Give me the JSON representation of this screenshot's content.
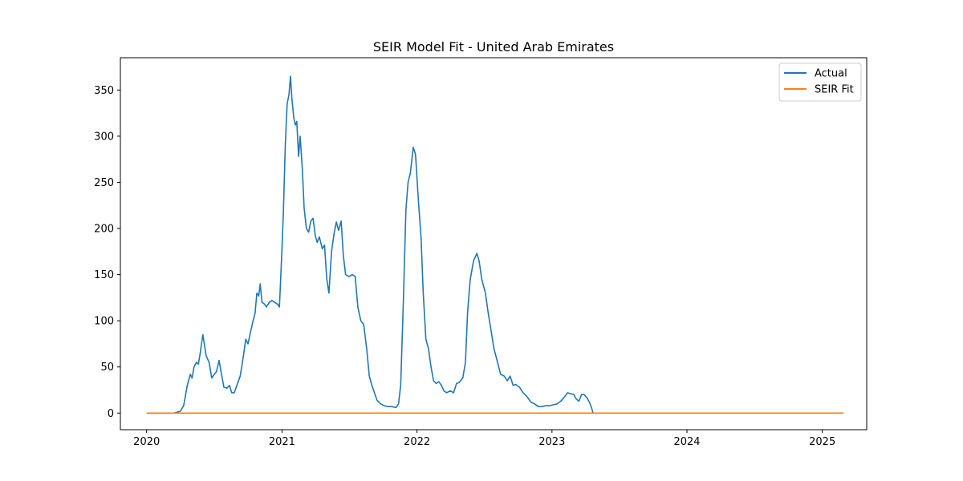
{
  "chart_data": {
    "type": "line",
    "title": "SEIR Model Fit - United Arab Emirates",
    "xlabel": "",
    "ylabel": "",
    "xlim": [
      "2019-10-22",
      "2025-05-01"
    ],
    "ylim": [
      -18,
      385
    ],
    "xticks": [
      "2020",
      "2021",
      "2022",
      "2023",
      "2024",
      "2025"
    ],
    "yticks": [
      0,
      50,
      100,
      150,
      200,
      250,
      300,
      350
    ],
    "grid": false,
    "legend_position": "top-right",
    "series": [
      {
        "name": "Actual",
        "color": "#1f77b4",
        "points": [
          [
            "2020-01-01",
            0
          ],
          [
            "2020-03-15",
            0
          ],
          [
            "2020-04-01",
            2
          ],
          [
            "2020-04-10",
            8
          ],
          [
            "2020-04-20",
            30
          ],
          [
            "2020-04-28",
            42
          ],
          [
            "2020-05-03",
            38
          ],
          [
            "2020-05-08",
            50
          ],
          [
            "2020-05-15",
            55
          ],
          [
            "2020-05-20",
            53
          ],
          [
            "2020-05-25",
            65
          ],
          [
            "2020-06-01",
            85
          ],
          [
            "2020-06-05",
            75
          ],
          [
            "2020-06-10",
            62
          ],
          [
            "2020-06-18",
            55
          ],
          [
            "2020-06-25",
            38
          ],
          [
            "2020-07-02",
            42
          ],
          [
            "2020-07-08",
            45
          ],
          [
            "2020-07-15",
            57
          ],
          [
            "2020-07-20",
            45
          ],
          [
            "2020-07-28",
            28
          ],
          [
            "2020-08-05",
            27
          ],
          [
            "2020-08-12",
            30
          ],
          [
            "2020-08-18",
            22
          ],
          [
            "2020-08-25",
            22
          ],
          [
            "2020-09-01",
            30
          ],
          [
            "2020-09-10",
            40
          ],
          [
            "2020-09-18",
            60
          ],
          [
            "2020-09-25",
            80
          ],
          [
            "2020-10-01",
            75
          ],
          [
            "2020-10-08",
            88
          ],
          [
            "2020-10-15",
            100
          ],
          [
            "2020-10-20",
            108
          ],
          [
            "2020-10-25",
            130
          ],
          [
            "2020-10-30",
            127
          ],
          [
            "2020-11-03",
            140
          ],
          [
            "2020-11-08",
            120
          ],
          [
            "2020-11-15",
            118
          ],
          [
            "2020-11-20",
            115
          ],
          [
            "2020-11-28",
            120
          ],
          [
            "2020-12-05",
            122
          ],
          [
            "2020-12-12",
            120
          ],
          [
            "2020-12-20",
            118
          ],
          [
            "2020-12-25",
            115
          ],
          [
            "2021-01-01",
            178
          ],
          [
            "2021-01-05",
            220
          ],
          [
            "2021-01-10",
            290
          ],
          [
            "2021-01-15",
            335
          ],
          [
            "2021-01-20",
            345
          ],
          [
            "2021-01-24",
            365
          ],
          [
            "2021-01-28",
            340
          ],
          [
            "2021-02-02",
            320
          ],
          [
            "2021-02-06",
            312
          ],
          [
            "2021-02-10",
            316
          ],
          [
            "2021-02-15",
            278
          ],
          [
            "2021-02-19",
            300
          ],
          [
            "2021-02-25",
            265
          ],
          [
            "2021-03-02",
            222
          ],
          [
            "2021-03-08",
            200
          ],
          [
            "2021-03-14",
            196
          ],
          [
            "2021-03-20",
            208
          ],
          [
            "2021-03-26",
            211
          ],
          [
            "2021-04-01",
            192
          ],
          [
            "2021-04-06",
            185
          ],
          [
            "2021-04-12",
            191
          ],
          [
            "2021-04-20",
            178
          ],
          [
            "2021-04-26",
            182
          ],
          [
            "2021-05-02",
            145
          ],
          [
            "2021-05-08",
            130
          ],
          [
            "2021-05-15",
            175
          ],
          [
            "2021-05-22",
            195
          ],
          [
            "2021-05-28",
            207
          ],
          [
            "2021-06-03",
            198
          ],
          [
            "2021-06-10",
            208
          ],
          [
            "2021-06-16",
            170
          ],
          [
            "2021-06-22",
            150
          ],
          [
            "2021-07-01",
            148
          ],
          [
            "2021-07-10",
            150
          ],
          [
            "2021-07-18",
            148
          ],
          [
            "2021-07-25",
            115
          ],
          [
            "2021-08-02",
            100
          ],
          [
            "2021-08-10",
            96
          ],
          [
            "2021-08-18",
            70
          ],
          [
            "2021-08-25",
            40
          ],
          [
            "2021-09-01",
            30
          ],
          [
            "2021-09-08",
            22
          ],
          [
            "2021-09-15",
            14
          ],
          [
            "2021-09-25",
            10
          ],
          [
            "2021-10-05",
            8
          ],
          [
            "2021-10-15",
            7
          ],
          [
            "2021-10-25",
            7
          ],
          [
            "2021-11-05",
            6
          ],
          [
            "2021-11-12",
            10
          ],
          [
            "2021-11-18",
            30
          ],
          [
            "2021-11-25",
            120
          ],
          [
            "2021-12-02",
            220
          ],
          [
            "2021-12-08",
            250
          ],
          [
            "2021-12-14",
            260
          ],
          [
            "2021-12-22",
            288
          ],
          [
            "2021-12-28",
            280
          ],
          [
            "2022-01-05",
            230
          ],
          [
            "2022-01-12",
            190
          ],
          [
            "2022-01-18",
            130
          ],
          [
            "2022-01-25",
            80
          ],
          [
            "2022-02-01",
            70
          ],
          [
            "2022-02-08",
            50
          ],
          [
            "2022-02-15",
            35
          ],
          [
            "2022-02-22",
            32
          ],
          [
            "2022-03-01",
            34
          ],
          [
            "2022-03-08",
            30
          ],
          [
            "2022-03-15",
            24
          ],
          [
            "2022-03-22",
            22
          ],
          [
            "2022-04-01",
            24
          ],
          [
            "2022-04-10",
            22
          ],
          [
            "2022-04-18",
            32
          ],
          [
            "2022-04-25",
            33
          ],
          [
            "2022-05-05",
            38
          ],
          [
            "2022-05-12",
            55
          ],
          [
            "2022-05-18",
            110
          ],
          [
            "2022-05-25",
            145
          ],
          [
            "2022-06-03",
            165
          ],
          [
            "2022-06-12",
            173
          ],
          [
            "2022-06-18",
            165
          ],
          [
            "2022-06-25",
            145
          ],
          [
            "2022-07-05",
            130
          ],
          [
            "2022-07-12",
            110
          ],
          [
            "2022-07-20",
            90
          ],
          [
            "2022-07-28",
            70
          ],
          [
            "2022-08-05",
            58
          ],
          [
            "2022-08-15",
            42
          ],
          [
            "2022-08-25",
            40
          ],
          [
            "2022-09-02",
            35
          ],
          [
            "2022-09-10",
            40
          ],
          [
            "2022-09-18",
            30
          ],
          [
            "2022-09-25",
            31
          ],
          [
            "2022-10-05",
            28
          ],
          [
            "2022-10-15",
            22
          ],
          [
            "2022-10-25",
            18
          ],
          [
            "2022-11-05",
            12
          ],
          [
            "2022-11-15",
            10
          ],
          [
            "2022-11-25",
            7
          ],
          [
            "2022-12-05",
            7
          ],
          [
            "2022-12-15",
            8
          ],
          [
            "2022-12-25",
            8
          ],
          [
            "2023-01-05",
            9
          ],
          [
            "2023-01-15",
            10
          ],
          [
            "2023-01-25",
            13
          ],
          [
            "2023-02-05",
            18
          ],
          [
            "2023-02-12",
            22
          ],
          [
            "2023-02-20",
            21
          ],
          [
            "2023-03-01",
            20
          ],
          [
            "2023-03-08",
            15
          ],
          [
            "2023-03-15",
            13
          ],
          [
            "2023-03-22",
            20
          ],
          [
            "2023-03-29",
            20
          ],
          [
            "2023-04-05",
            17
          ],
          [
            "2023-04-12",
            12
          ],
          [
            "2023-04-18",
            6
          ],
          [
            "2023-04-22",
            0
          ]
        ]
      },
      {
        "name": "SEIR Fit",
        "color": "#ff7f0e",
        "points": [
          [
            "2020-01-01",
            0
          ],
          [
            "2025-02-28",
            0
          ]
        ]
      }
    ]
  }
}
